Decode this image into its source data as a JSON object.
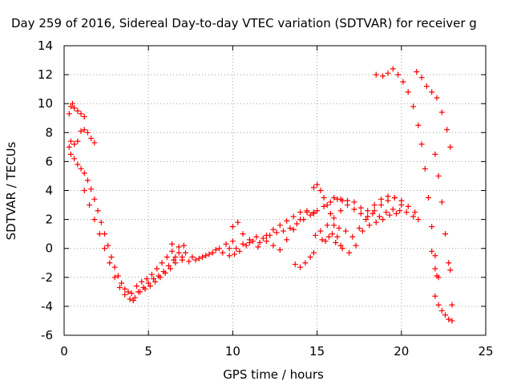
{
  "chart_data": {
    "type": "scatter",
    "title": "Day 259 of 2016, Sidereal Day-to-day VTEC variation (SDTVAR) for receiver g",
    "xlabel": "GPS time / hours",
    "ylabel": "SDTVAR / TECUs",
    "xlim": [
      0,
      25
    ],
    "ylim": [
      -6,
      14
    ],
    "xticks": [
      "0",
      "5",
      "10",
      "15",
      "20",
      "25"
    ],
    "yticks": [
      "-6",
      "-4",
      "-2",
      "0",
      "2",
      "4",
      "6",
      "8",
      "10",
      "12",
      "14"
    ],
    "grid": true,
    "marker": "+",
    "color": "#ff0000",
    "series": [
      {
        "points": [
          [
            0.3,
            9.3
          ],
          [
            0.4,
            9.8
          ],
          [
            0.5,
            10.0
          ],
          [
            0.6,
            9.7
          ],
          [
            0.8,
            9.5
          ],
          [
            1.0,
            9.3
          ],
          [
            1.2,
            9.1
          ],
          [
            0.3,
            7.0
          ],
          [
            0.4,
            7.4
          ],
          [
            0.6,
            7.2
          ],
          [
            0.8,
            7.4
          ],
          [
            1.0,
            8.1
          ],
          [
            1.2,
            8.2
          ],
          [
            1.4,
            8.0
          ],
          [
            1.6,
            7.6
          ],
          [
            1.8,
            7.3
          ],
          [
            0.4,
            6.5
          ],
          [
            0.6,
            6.2
          ],
          [
            0.8,
            5.8
          ],
          [
            1.0,
            5.5
          ],
          [
            1.2,
            5.2
          ],
          [
            1.4,
            4.7
          ],
          [
            1.6,
            4.1
          ],
          [
            1.8,
            3.4
          ],
          [
            2.0,
            2.6
          ],
          [
            2.2,
            1.8
          ],
          [
            2.4,
            1.0
          ],
          [
            2.6,
            0.2
          ],
          [
            2.8,
            -0.6
          ],
          [
            3.0,
            -1.3
          ],
          [
            3.2,
            -1.9
          ],
          [
            3.4,
            -2.4
          ],
          [
            3.6,
            -2.8
          ],
          [
            3.8,
            -3.0
          ],
          [
            4.0,
            -3.1
          ],
          [
            1.2,
            4.0
          ],
          [
            1.5,
            3.0
          ],
          [
            1.8,
            2.0
          ],
          [
            2.1,
            1.0
          ],
          [
            2.4,
            0.0
          ],
          [
            2.7,
            -1.0
          ],
          [
            3.0,
            -2.0
          ],
          [
            3.3,
            -2.7
          ],
          [
            3.6,
            -3.2
          ],
          [
            3.9,
            -3.5
          ],
          [
            4.1,
            -3.6
          ],
          [
            4.2,
            -3.4
          ],
          [
            4.5,
            -3.0
          ],
          [
            4.8,
            -2.8
          ],
          [
            5.1,
            -2.6
          ],
          [
            5.4,
            -2.3
          ],
          [
            5.7,
            -2.0
          ],
          [
            6.0,
            -1.7
          ],
          [
            6.3,
            -1.4
          ],
          [
            6.6,
            -1.0
          ],
          [
            7.0,
            -0.6
          ],
          [
            4.3,
            -2.6
          ],
          [
            4.6,
            -2.3
          ],
          [
            4.9,
            -2.1
          ],
          [
            5.2,
            -1.8
          ],
          [
            5.5,
            -1.4
          ],
          [
            5.8,
            -1.0
          ],
          [
            6.1,
            -0.6
          ],
          [
            6.4,
            -0.2
          ],
          [
            4.4,
            -3.0
          ],
          [
            4.7,
            -2.7
          ],
          [
            5.0,
            -2.4
          ],
          [
            5.3,
            -2.1
          ],
          [
            5.6,
            -1.9
          ],
          [
            5.9,
            -1.6
          ],
          [
            6.2,
            -1.2
          ],
          [
            6.5,
            -0.8
          ],
          [
            6.8,
            -0.3
          ],
          [
            7.1,
            0.2
          ],
          [
            6.4,
            0.3
          ],
          [
            6.8,
            0.1
          ],
          [
            7.2,
            -0.3
          ],
          [
            7.6,
            -0.6
          ],
          [
            8.0,
            -0.7
          ],
          [
            8.4,
            -0.5
          ],
          [
            8.8,
            -0.3
          ],
          [
            9.2,
            0.0
          ],
          [
            9.6,
            0.3
          ],
          [
            10.0,
            0.5
          ],
          [
            6.6,
            -0.6
          ],
          [
            7.0,
            -0.8
          ],
          [
            7.4,
            -0.9
          ],
          [
            7.8,
            -0.8
          ],
          [
            8.2,
            -0.6
          ],
          [
            8.6,
            -0.4
          ],
          [
            9.0,
            -0.1
          ],
          [
            9.4,
            -0.3
          ],
          [
            9.8,
            -0.5
          ],
          [
            10.2,
            0.0
          ],
          [
            10.6,
            0.3
          ],
          [
            11.0,
            0.6
          ],
          [
            11.4,
            0.8
          ],
          [
            11.8,
            0.7
          ],
          [
            12.2,
            0.9
          ],
          [
            12.6,
            1.1
          ],
          [
            13.0,
            1.2
          ],
          [
            13.4,
            1.4
          ],
          [
            13.8,
            1.7
          ],
          [
            14.2,
            2.0
          ],
          [
            14.6,
            2.3
          ],
          [
            15.0,
            2.6
          ],
          [
            15.4,
            2.9
          ],
          [
            15.8,
            3.2
          ],
          [
            16.2,
            3.4
          ],
          [
            16.5,
            3.3
          ],
          [
            10.0,
            1.5
          ],
          [
            10.3,
            1.8
          ],
          [
            10.6,
            1.0
          ],
          [
            11.0,
            0.4
          ],
          [
            11.5,
            0.1
          ],
          [
            12.0,
            0.5
          ],
          [
            12.4,
            0.2
          ],
          [
            12.8,
            -0.1
          ],
          [
            13.2,
            0.6
          ],
          [
            13.6,
            1.3
          ],
          [
            14.0,
            2.0
          ],
          [
            14.4,
            2.5
          ],
          [
            14.8,
            2.4
          ],
          [
            9.8,
            0.0
          ],
          [
            10.1,
            -0.4
          ],
          [
            10.4,
            -0.2
          ],
          [
            10.8,
            0.2
          ],
          [
            11.2,
            0.5
          ],
          [
            11.6,
            0.4
          ],
          [
            12.0,
            0.9
          ],
          [
            12.4,
            1.3
          ],
          [
            12.8,
            1.6
          ],
          [
            13.2,
            1.9
          ],
          [
            13.6,
            2.2
          ],
          [
            14.0,
            2.5
          ],
          [
            14.4,
            2.6
          ],
          [
            14.8,
            2.5
          ],
          [
            13.7,
            -1.1
          ],
          [
            14.0,
            -1.3
          ],
          [
            14.3,
            -1.0
          ],
          [
            14.6,
            -0.6
          ],
          [
            14.8,
            -0.3
          ],
          [
            14.8,
            4.2
          ],
          [
            15.0,
            4.4
          ],
          [
            15.2,
            4.0
          ],
          [
            15.4,
            3.5
          ],
          [
            15.6,
            3.0
          ],
          [
            15.8,
            2.4
          ],
          [
            16.0,
            1.6
          ],
          [
            16.2,
            0.8
          ],
          [
            16.4,
            0.2
          ],
          [
            15.2,
            1.2
          ],
          [
            15.6,
            1.6
          ],
          [
            16.0,
            2.1
          ],
          [
            16.4,
            2.6
          ],
          [
            16.8,
            3.0
          ],
          [
            17.2,
            3.2
          ],
          [
            17.6,
            2.8
          ],
          [
            18.0,
            2.2
          ],
          [
            18.4,
            2.6
          ],
          [
            18.8,
            3.0
          ],
          [
            19.2,
            3.3
          ],
          [
            19.6,
            3.5
          ],
          [
            20.0,
            3.3
          ],
          [
            20.4,
            2.9
          ],
          [
            20.8,
            2.5
          ],
          [
            21.0,
            2.0
          ],
          [
            15.5,
            0.5
          ],
          [
            15.9,
            1.0
          ],
          [
            16.3,
            1.4
          ],
          [
            16.7,
            1.2
          ],
          [
            17.1,
            0.8
          ],
          [
            17.5,
            1.4
          ],
          [
            17.9,
            2.0
          ],
          [
            18.3,
            2.4
          ],
          [
            18.7,
            2.2
          ],
          [
            19.1,
            2.5
          ],
          [
            19.5,
            2.7
          ],
          [
            19.9,
            2.6
          ],
          [
            20.3,
            2.5
          ],
          [
            20.7,
            2.2
          ],
          [
            14.9,
            0.9
          ],
          [
            15.3,
            0.6
          ],
          [
            15.7,
            0.8
          ],
          [
            16.1,
            0.4
          ],
          [
            16.5,
            0.0
          ],
          [
            16.9,
            -0.3
          ],
          [
            17.3,
            0.2
          ],
          [
            17.7,
            1.2
          ],
          [
            18.1,
            1.6
          ],
          [
            18.5,
            1.8
          ],
          [
            18.9,
            2.0
          ],
          [
            19.3,
            2.3
          ],
          [
            19.7,
            2.4
          ],
          [
            16.0,
            3.5
          ],
          [
            16.4,
            3.4
          ],
          [
            16.8,
            3.3
          ],
          [
            17.2,
            2.7
          ],
          [
            17.6,
            2.4
          ],
          [
            18.0,
            2.6
          ],
          [
            18.4,
            3.0
          ],
          [
            18.8,
            3.4
          ],
          [
            19.2,
            3.6
          ],
          [
            19.6,
            3.5
          ],
          [
            20.0,
            3.0
          ],
          [
            18.5,
            12.0
          ],
          [
            18.9,
            11.9
          ],
          [
            19.2,
            12.1
          ],
          [
            19.5,
            12.4
          ],
          [
            19.8,
            12.0
          ],
          [
            20.1,
            11.5
          ],
          [
            20.4,
            10.8
          ],
          [
            20.7,
            9.8
          ],
          [
            21.0,
            8.5
          ],
          [
            21.2,
            7.2
          ],
          [
            21.4,
            5.5
          ],
          [
            21.6,
            3.5
          ],
          [
            21.8,
            1.5
          ],
          [
            22.0,
            -0.5
          ],
          [
            22.2,
            -2.0
          ],
          [
            20.9,
            12.2
          ],
          [
            21.2,
            11.8
          ],
          [
            21.5,
            11.2
          ],
          [
            21.8,
            10.8
          ],
          [
            22.1,
            10.4
          ],
          [
            22.4,
            9.4
          ],
          [
            22.7,
            8.2
          ],
          [
            22.9,
            7.0
          ],
          [
            22.0,
            6.5
          ],
          [
            22.2,
            5.0
          ],
          [
            22.4,
            3.2
          ],
          [
            22.6,
            1.0
          ],
          [
            22.8,
            -1.0
          ],
          [
            22.9,
            -1.5
          ],
          [
            21.8,
            -0.2
          ],
          [
            22.0,
            -1.4
          ],
          [
            22.1,
            -1.9
          ],
          [
            22.0,
            -3.3
          ],
          [
            22.2,
            -3.9
          ],
          [
            22.4,
            -4.3
          ],
          [
            22.6,
            -4.6
          ],
          [
            22.8,
            -4.9
          ],
          [
            23.0,
            -5.0
          ],
          [
            23.0,
            -3.9
          ]
        ]
      }
    ]
  }
}
